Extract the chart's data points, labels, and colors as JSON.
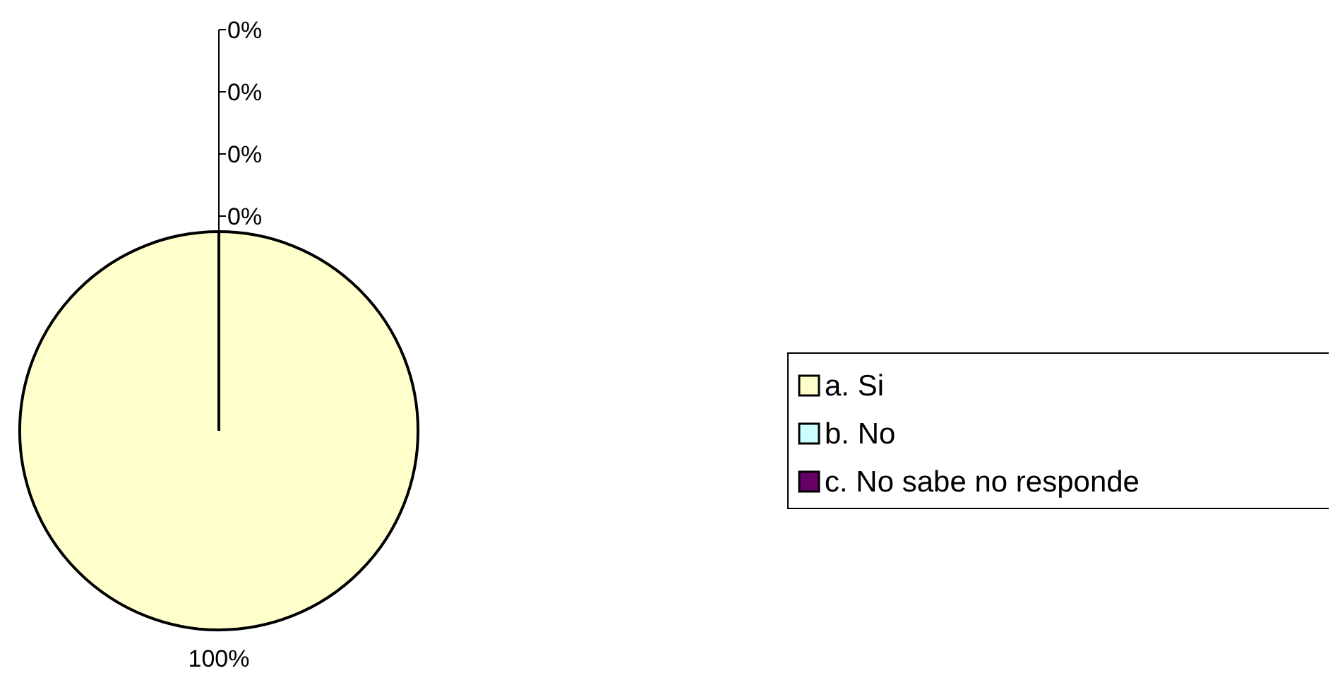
{
  "chart_data": {
    "type": "pie",
    "categories": [
      "a. Si",
      "b. No",
      "c. No sabe no responde",
      null,
      null
    ],
    "values": [
      100,
      0,
      0,
      0,
      0
    ],
    "value_labels": [
      "100%",
      "0%",
      "0%",
      "0%",
      "0%"
    ],
    "colors": [
      "#ffffcc",
      "#ccffff",
      "#660066",
      "#ff8080",
      "#0066cc"
    ],
    "legend": "right"
  }
}
